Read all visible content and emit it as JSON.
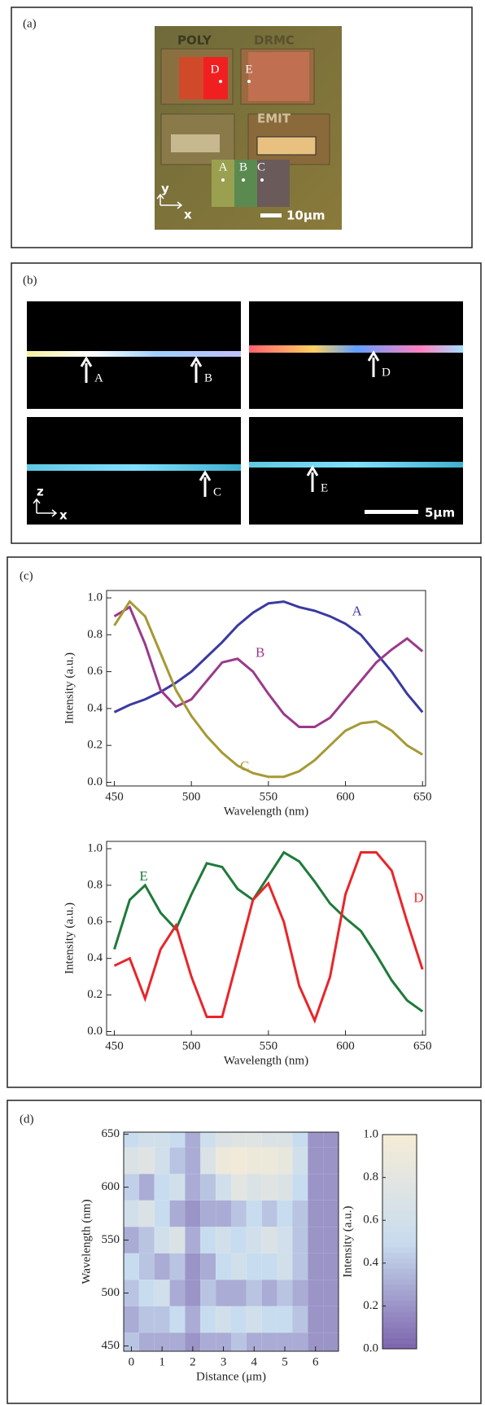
{
  "panel_a": {
    "label": "(a)",
    "chip_labels": [
      "POLY",
      "DRMC",
      "EMIT"
    ],
    "points": [
      "D",
      "E",
      "A",
      "B",
      "C"
    ],
    "axes": [
      "y",
      "x"
    ],
    "scale": "10μm"
  },
  "panel_b": {
    "label": "(b)",
    "markers": [
      "A",
      "B",
      "D",
      "C",
      "E"
    ],
    "axes": [
      "z",
      "x"
    ],
    "scale": "5μm"
  },
  "panel_c": {
    "label": "(c)"
  },
  "panel_d": {
    "label": "(d)"
  },
  "chart_data": [
    {
      "type": "line",
      "xlabel": "Wavelength (nm)",
      "ylabel": "Intensity (a.u.)",
      "x": [
        450,
        460,
        470,
        480,
        490,
        500,
        510,
        520,
        530,
        540,
        550,
        560,
        570,
        580,
        590,
        600,
        610,
        620,
        630,
        640,
        650
      ],
      "series": [
        {
          "name": "A",
          "color": "#3a3aa0",
          "values": [
            0.38,
            0.42,
            0.45,
            0.49,
            0.54,
            0.6,
            0.68,
            0.76,
            0.85,
            0.92,
            0.97,
            0.98,
            0.95,
            0.93,
            0.9,
            0.86,
            0.8,
            0.7,
            0.6,
            0.48,
            0.38
          ]
        },
        {
          "name": "B",
          "color": "#9a3a8a",
          "values": [
            0.9,
            0.95,
            0.75,
            0.5,
            0.41,
            0.45,
            0.55,
            0.65,
            0.67,
            0.6,
            0.48,
            0.37,
            0.3,
            0.3,
            0.35,
            0.45,
            0.55,
            0.65,
            0.72,
            0.78,
            0.71
          ]
        },
        {
          "name": "C",
          "color": "#a59a35",
          "values": [
            0.85,
            0.98,
            0.9,
            0.7,
            0.5,
            0.36,
            0.25,
            0.16,
            0.09,
            0.05,
            0.03,
            0.03,
            0.06,
            0.12,
            0.2,
            0.28,
            0.32,
            0.33,
            0.28,
            0.2,
            0.15
          ]
        }
      ],
      "xlim": [
        445,
        652
      ],
      "ylim": [
        -0.02,
        1.04
      ],
      "xticks": [
        450,
        500,
        550,
        600,
        650
      ],
      "yticks": [
        {
          "value": 0,
          "label": "0.0"
        },
        {
          "value": 0.2,
          "label": "0.2"
        },
        {
          "value": 0.4,
          "label": "0.4"
        },
        {
          "value": 0.6,
          "label": "0.6"
        },
        {
          "value": 0.8,
          "label": "0.8"
        },
        {
          "value": 1,
          "label": "1.0"
        }
      ]
    },
    {
      "type": "line",
      "xlabel": "Wavelength (nm)",
      "ylabel": "Intensity (a.u.)",
      "x": [
        450,
        460,
        470,
        480,
        490,
        500,
        510,
        520,
        530,
        540,
        550,
        560,
        570,
        580,
        590,
        600,
        610,
        620,
        630,
        640,
        650
      ],
      "series": [
        {
          "name": "E",
          "color": "#1f7a3a",
          "values": [
            0.45,
            0.72,
            0.8,
            0.65,
            0.56,
            0.75,
            0.92,
            0.9,
            0.78,
            0.72,
            0.85,
            0.98,
            0.93,
            0.82,
            0.7,
            0.62,
            0.55,
            0.42,
            0.28,
            0.17,
            0.11
          ]
        },
        {
          "name": "D",
          "color": "#e8262a",
          "values": [
            0.36,
            0.4,
            0.18,
            0.45,
            0.58,
            0.3,
            0.08,
            0.08,
            0.4,
            0.72,
            0.81,
            0.6,
            0.25,
            0.06,
            0.3,
            0.75,
            0.98,
            0.98,
            0.88,
            0.6,
            0.34
          ]
        }
      ],
      "xlim": [
        445,
        652
      ],
      "ylim": [
        -0.02,
        1.04
      ],
      "xticks": [
        450,
        500,
        550,
        600,
        650
      ],
      "yticks": [
        {
          "value": 0,
          "label": "0.0"
        },
        {
          "value": 0.2,
          "label": "0.2"
        },
        {
          "value": 0.4,
          "label": "0.4"
        },
        {
          "value": 0.6,
          "label": "0.6"
        },
        {
          "value": 0.8,
          "label": "0.8"
        },
        {
          "value": 1,
          "label": "1.0"
        }
      ]
    },
    {
      "type": "heatmap",
      "xlabel": "Distance (μm)",
      "ylabel": "Wavelength (nm)",
      "colorbar_label": "Intensity (a.u.)",
      "x": [
        0,
        0.5,
        1,
        1.5,
        2,
        2.5,
        3,
        3.5,
        4,
        4.5,
        5,
        5.5,
        6,
        6.5
      ],
      "y": [
        650,
        625,
        600,
        575,
        550,
        525,
        500,
        475,
        450
      ],
      "values": [
        [
          0.5,
          0.6,
          0.6,
          0.5,
          0.3,
          0.55,
          0.7,
          0.75,
          0.75,
          0.7,
          0.7,
          0.5,
          0.2,
          0.2
        ],
        [
          0.7,
          0.75,
          0.6,
          0.4,
          0.3,
          0.7,
          0.9,
          0.95,
          0.9,
          0.9,
          0.85,
          0.6,
          0.2,
          0.2
        ],
        [
          0.45,
          0.3,
          0.5,
          0.6,
          0.3,
          0.4,
          0.6,
          0.8,
          0.7,
          0.75,
          0.7,
          0.5,
          0.2,
          0.2
        ],
        [
          0.6,
          0.7,
          0.5,
          0.3,
          0.2,
          0.3,
          0.3,
          0.4,
          0.5,
          0.4,
          0.5,
          0.4,
          0.2,
          0.2
        ],
        [
          0.3,
          0.4,
          0.6,
          0.7,
          0.3,
          0.5,
          0.6,
          0.5,
          0.6,
          0.7,
          0.6,
          0.4,
          0.2,
          0.2
        ],
        [
          0.5,
          0.4,
          0.3,
          0.4,
          0.2,
          0.3,
          0.5,
          0.6,
          0.5,
          0.5,
          0.6,
          0.4,
          0.2,
          0.2
        ],
        [
          0.4,
          0.5,
          0.6,
          0.3,
          0.2,
          0.4,
          0.3,
          0.3,
          0.4,
          0.3,
          0.4,
          0.3,
          0.2,
          0.2
        ],
        [
          0.3,
          0.4,
          0.4,
          0.5,
          0.3,
          0.5,
          0.6,
          0.5,
          0.6,
          0.5,
          0.5,
          0.4,
          0.2,
          0.2
        ],
        [
          0.4,
          0.3,
          0.3,
          0.3,
          0.2,
          0.3,
          0.3,
          0.4,
          0.3,
          0.3,
          0.3,
          0.3,
          0.2,
          0.2
        ]
      ],
      "colorscale": [
        "#7d64ad",
        "#c8dcef",
        "#f5ecd6"
      ],
      "xlim": [
        -0.25,
        6.75
      ],
      "ylim": [
        445,
        652
      ],
      "xticks": [
        0,
        1,
        2,
        3,
        4,
        5,
        6
      ],
      "yticks": [
        450,
        500,
        550,
        600,
        650
      ],
      "clim": [
        0,
        1
      ],
      "cticks": [
        {
          "value": 0,
          "label": "0.0"
        },
        {
          "value": 0.2,
          "label": "0.2"
        },
        {
          "value": 0.4,
          "label": "0.4"
        },
        {
          "value": 0.6,
          "label": "0.6"
        },
        {
          "value": 0.8,
          "label": "0.8"
        },
        {
          "value": 1,
          "label": "1.0"
        }
      ]
    }
  ]
}
